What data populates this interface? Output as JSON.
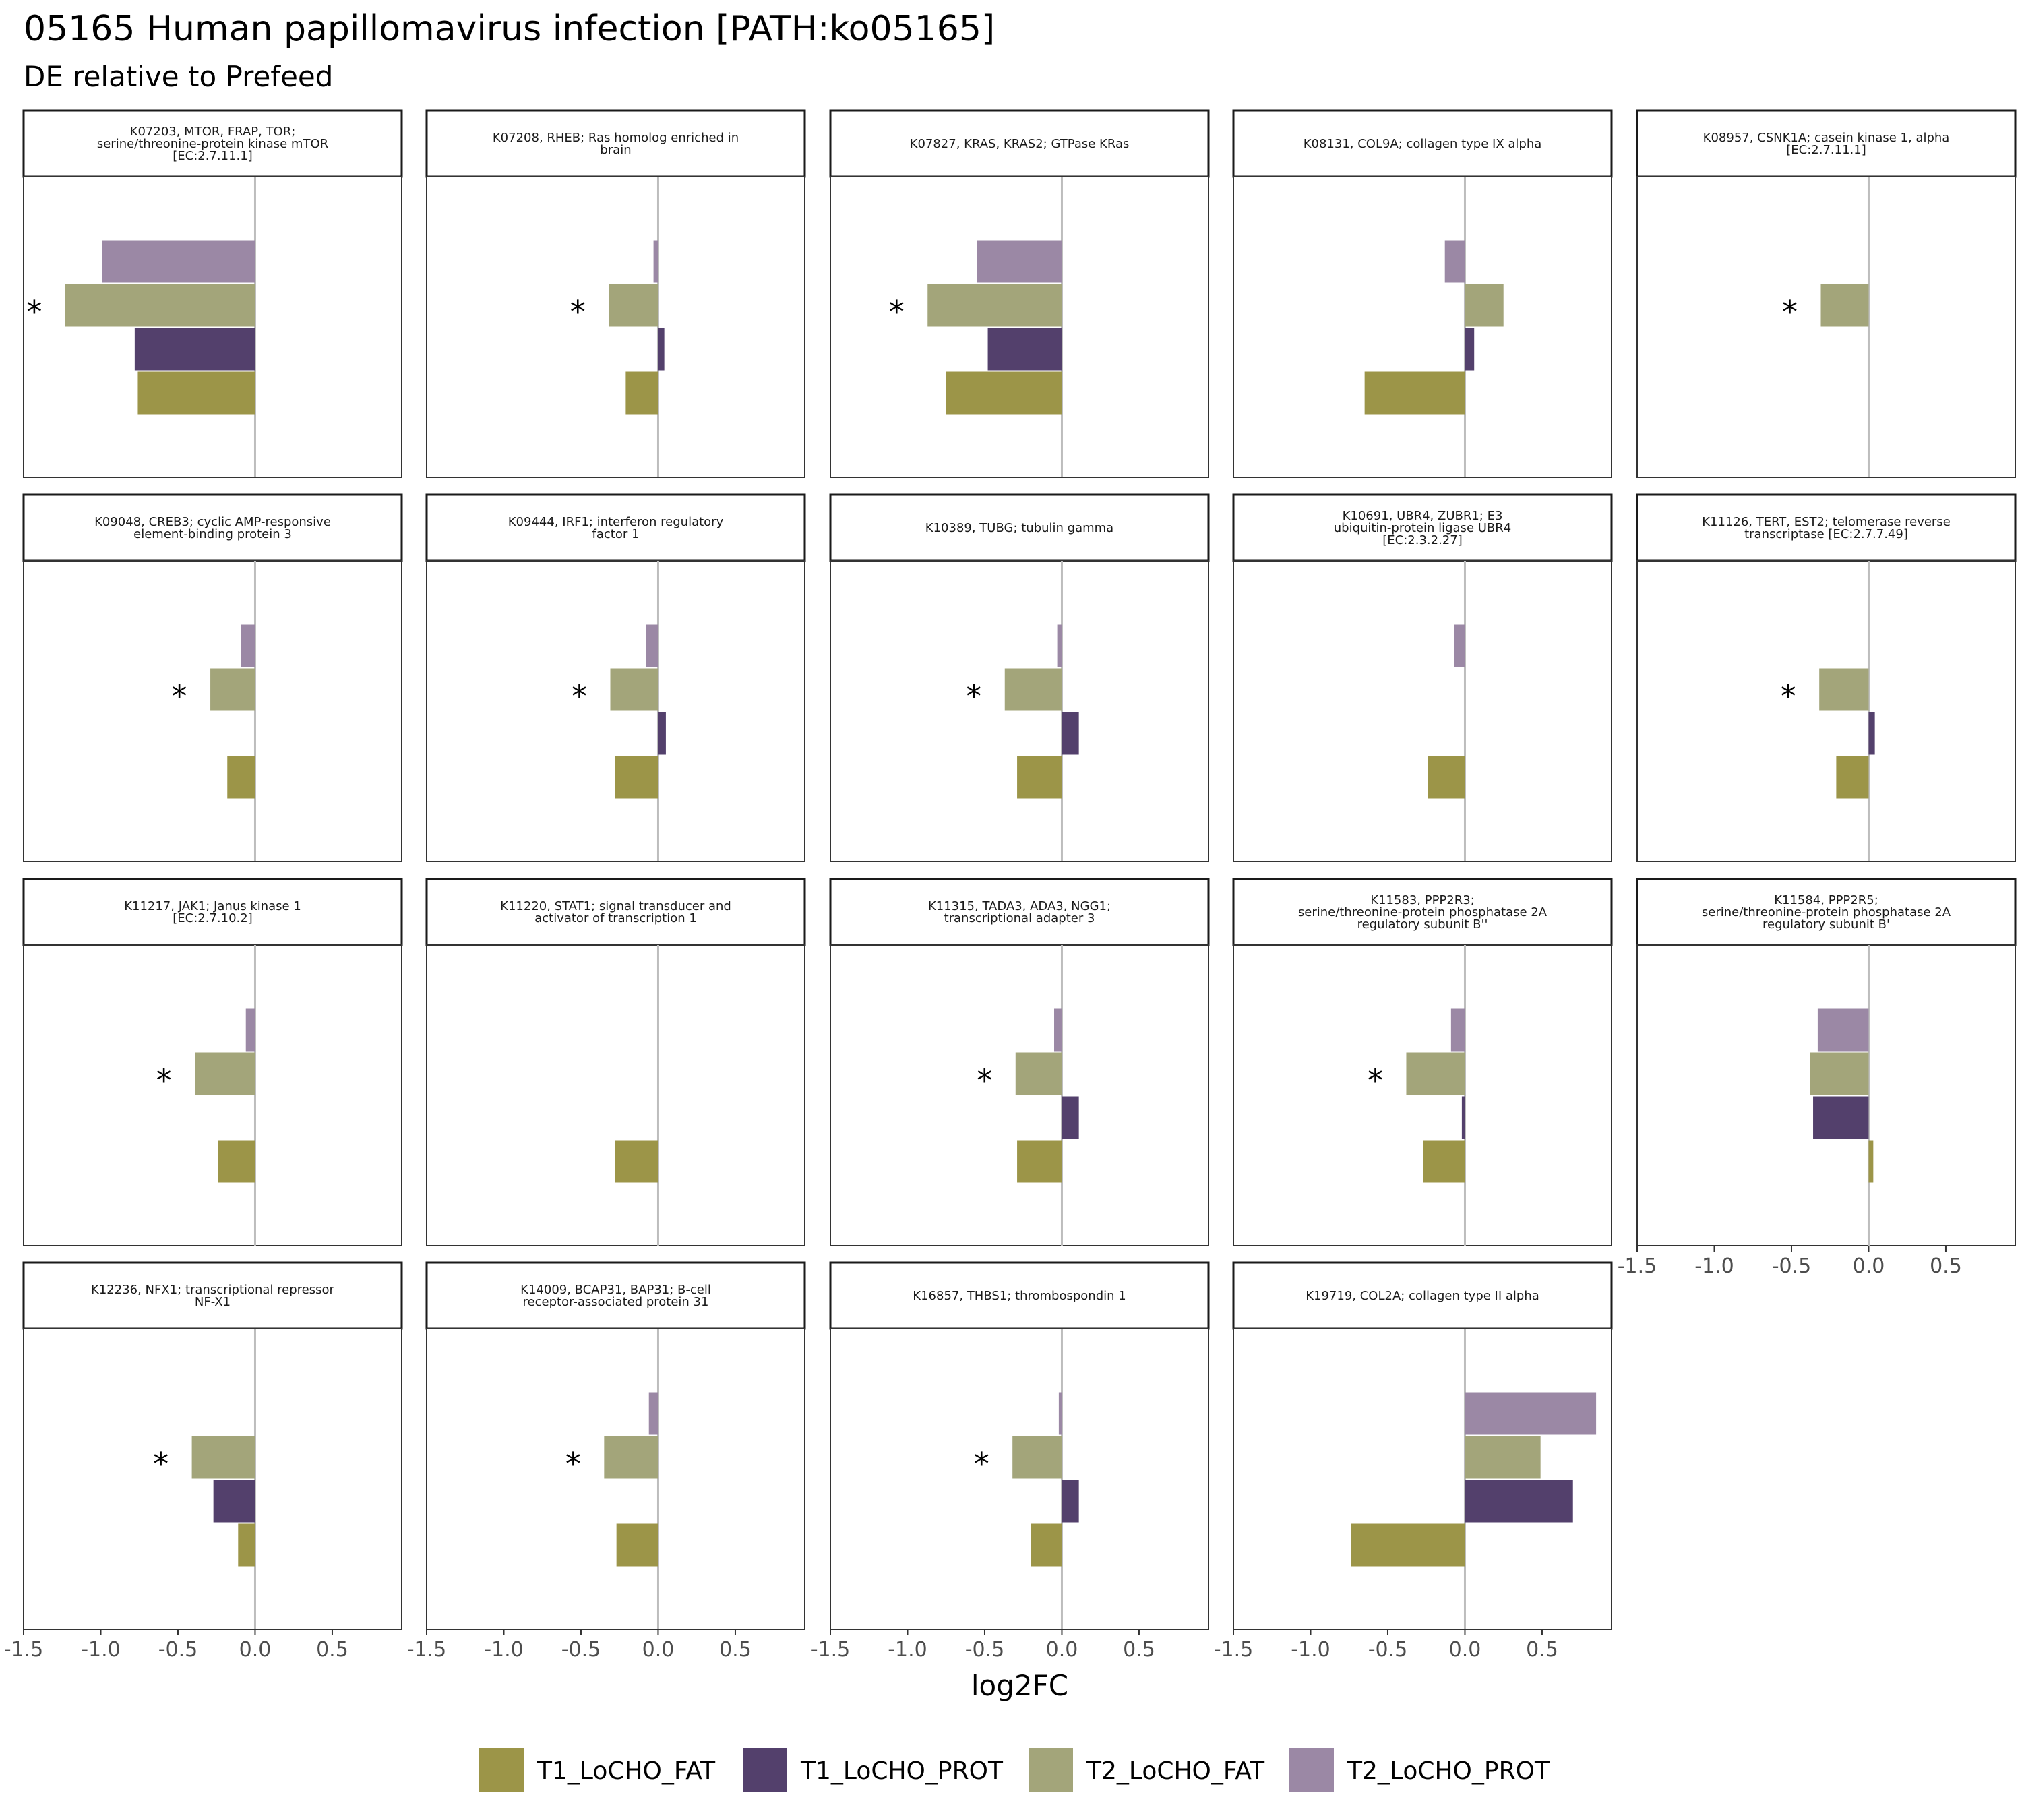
{
  "title": "05165 Human papillomavirus infection [PATH:ko05165]",
  "subtitle": "DE relative to Prefeed",
  "chart_data": {
    "type": "bar",
    "orientation": "horizontal",
    "xlabel": "log2FC",
    "xlim": [
      -1.5,
      0.95
    ],
    "xticks": [
      -1.5,
      -1.0,
      -0.5,
      0.0,
      0.5
    ],
    "xtick_labels": [
      "-1.5",
      "-1.0",
      "-0.5",
      "0.0",
      "0.5"
    ],
    "reference_line_x": 0,
    "grid": false,
    "legend_position": "bottom",
    "series": [
      {
        "name": "T1_LoCHO_FAT",
        "color": "#9c9548"
      },
      {
        "name": "T1_LoCHO_PROT",
        "color": "#53406c"
      },
      {
        "name": "T2_LoCHO_FAT",
        "color": "#a3a57a"
      },
      {
        "name": "T2_LoCHO_PROT",
        "color": "#9b88a5"
      }
    ],
    "panels": [
      {
        "title": [
          "K07203, MTOR, FRAP, TOR;",
          "serine/threonine-protein kinase mTOR",
          "[EC:2.7.11.1]"
        ],
        "values": [
          -0.76,
          -0.78,
          -1.23,
          -0.99
        ],
        "star": "*"
      },
      {
        "title": [
          "K07208, RHEB; Ras homolog enriched in",
          "brain"
        ],
        "values": [
          -0.21,
          0.04,
          -0.32,
          -0.03
        ],
        "star": "*"
      },
      {
        "title": [
          "K07827, KRAS, KRAS2; GTPase KRas"
        ],
        "values": [
          -0.75,
          -0.48,
          -0.87,
          -0.55
        ],
        "star": "*"
      },
      {
        "title": [
          "K08131, COL9A; collagen type IX alpha"
        ],
        "values": [
          -0.65,
          0.06,
          0.25,
          -0.13
        ],
        "star": ""
      },
      {
        "title": [
          "K08957, CSNK1A; casein kinase 1, alpha",
          "[EC:2.7.11.1]"
        ],
        "values": [
          null,
          null,
          -0.31,
          null
        ],
        "star": "*"
      },
      {
        "title": [
          "K09048, CREB3; cyclic AMP-responsive",
          "element-binding protein 3"
        ],
        "values": [
          -0.18,
          null,
          -0.29,
          -0.09
        ],
        "star": "*"
      },
      {
        "title": [
          "K09444, IRF1; interferon regulatory",
          "factor 1"
        ],
        "values": [
          -0.28,
          0.05,
          -0.31,
          -0.08
        ],
        "star": "*"
      },
      {
        "title": [
          "K10389, TUBG; tubulin gamma"
        ],
        "values": [
          -0.29,
          0.11,
          -0.37,
          -0.03
        ],
        "star": "*"
      },
      {
        "title": [
          "K10691, UBR4, ZUBR1; E3",
          "ubiquitin-protein ligase UBR4",
          "[EC:2.3.2.27]"
        ],
        "values": [
          -0.24,
          null,
          null,
          -0.07
        ],
        "star": ""
      },
      {
        "title": [
          "K11126, TERT, EST2; telomerase reverse",
          "transcriptase [EC:2.7.7.49]"
        ],
        "values": [
          -0.21,
          0.04,
          -0.32,
          null
        ],
        "star": "*"
      },
      {
        "title": [
          "K11217, JAK1; Janus kinase 1",
          "[EC:2.7.10.2]"
        ],
        "values": [
          -0.24,
          null,
          -0.39,
          -0.06
        ],
        "star": "*"
      },
      {
        "title": [
          "K11220, STAT1; signal transducer and",
          "activator of transcription 1"
        ],
        "values": [
          -0.28,
          null,
          null,
          null
        ],
        "star": ""
      },
      {
        "title": [
          "K11315, TADA3, ADA3, NGG1;",
          "transcriptional adapter 3"
        ],
        "values": [
          -0.29,
          0.11,
          -0.3,
          -0.05
        ],
        "star": "*"
      },
      {
        "title": [
          "K11583, PPP2R3;",
          "serine/threonine-protein phosphatase 2A",
          "regulatory subunit B''"
        ],
        "values": [
          -0.27,
          -0.02,
          -0.38,
          -0.09
        ],
        "star": "*"
      },
      {
        "title": [
          "K11584, PPP2R5;",
          "serine/threonine-protein phosphatase 2A",
          "regulatory subunit B'"
        ],
        "values": [
          0.03,
          -0.36,
          -0.38,
          -0.33
        ],
        "star": ""
      },
      {
        "title": [
          "K12236, NFX1; transcriptional repressor",
          "NF-X1"
        ],
        "values": [
          -0.11,
          -0.27,
          -0.41,
          null
        ],
        "star": "*"
      },
      {
        "title": [
          "K14009, BCAP31, BAP31; B-cell",
          "receptor-associated protein 31"
        ],
        "values": [
          -0.27,
          null,
          -0.35,
          -0.06
        ],
        "star": "*"
      },
      {
        "title": [
          "K16857, THBS1; thrombospondin 1"
        ],
        "values": [
          -0.2,
          0.11,
          -0.32,
          -0.02
        ],
        "star": "*"
      },
      {
        "title": [
          "K19719, COL2A; collagen type II alpha"
        ],
        "values": [
          -0.74,
          0.7,
          0.49,
          0.85
        ],
        "star": ""
      }
    ]
  }
}
